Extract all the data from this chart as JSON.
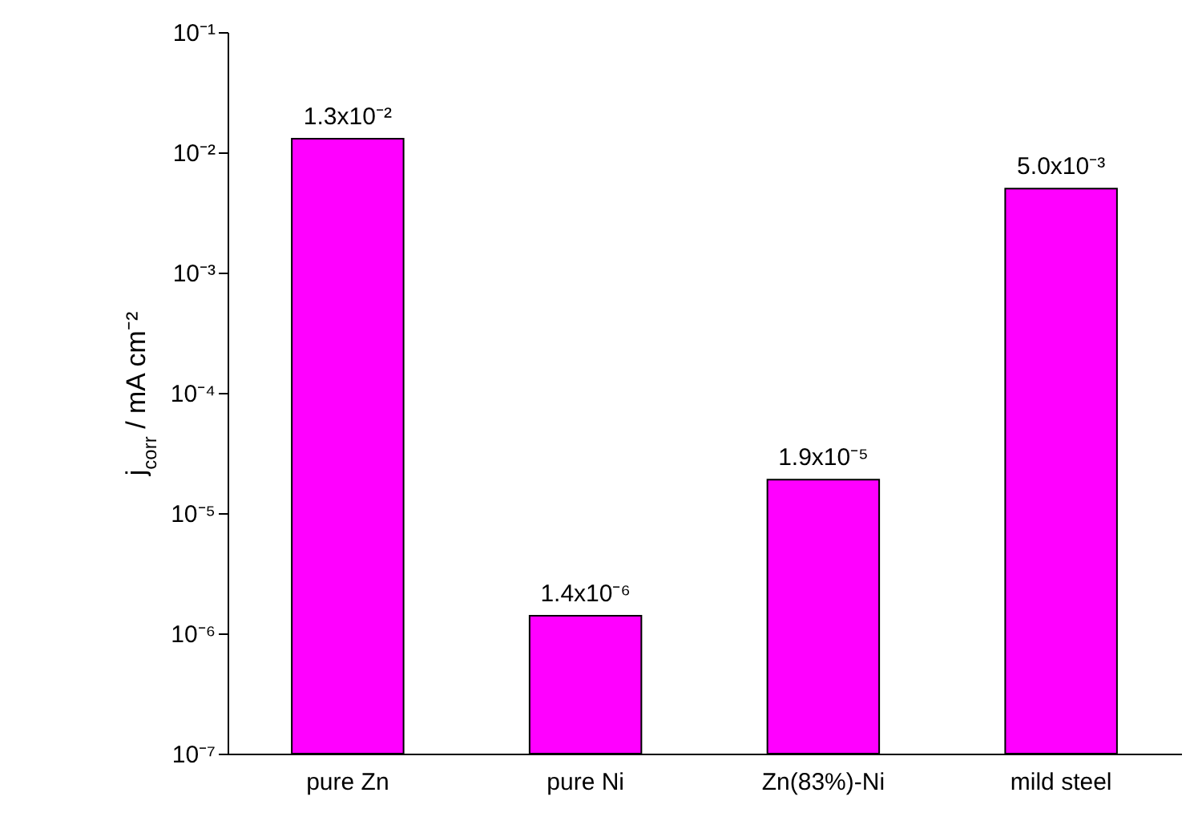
{
  "chart_data": {
    "type": "bar",
    "ylabel": "j$_{corr}$ / mA cm⁻²",
    "categories": [
      "pure Zn",
      "pure Ni",
      "Zn(83%)-Ni",
      "mild steel"
    ],
    "values": [
      0.013,
      1.4e-06,
      1.9e-05,
      0.005
    ],
    "value_labels": [
      "1.3x10⁻²",
      "1.4x10⁻⁶",
      "1.9x10⁻⁵",
      "5.0x10⁻³"
    ],
    "color": "#ff00ff",
    "log": true,
    "ylim": [
      1e-07,
      0.1
    ],
    "yticks": [
      {
        "value": 1e-07,
        "label": "10⁻⁷"
      },
      {
        "value": 1e-06,
        "label": "10⁻⁶"
      },
      {
        "value": 1e-05,
        "label": "10⁻⁵"
      },
      {
        "value": 0.0001,
        "label": "10⁻⁴"
      },
      {
        "value": 0.001,
        "label": "10⁻³"
      },
      {
        "value": 0.01,
        "label": "10⁻²"
      },
      {
        "value": 0.1,
        "label": "10⁻¹"
      }
    ],
    "grid": false
  }
}
